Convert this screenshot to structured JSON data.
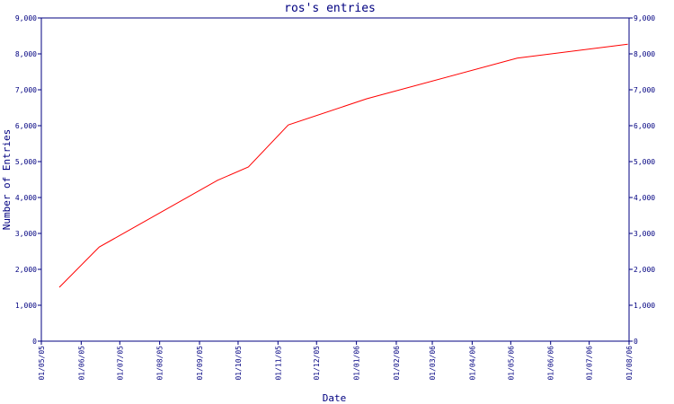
{
  "chart_data": {
    "type": "line",
    "title": "ros's entries",
    "xlabel": "Date",
    "ylabel": "Number of Entries",
    "grid": false,
    "x_ticks": [
      "01/05/05",
      "01/06/05",
      "01/07/05",
      "01/08/05",
      "01/09/05",
      "01/10/05",
      "01/11/05",
      "01/12/05",
      "01/01/06",
      "01/02/06",
      "01/03/06",
      "01/04/06",
      "01/05/06",
      "01/06/06",
      "01/07/06",
      "01/08/06"
    ],
    "xlim": [
      "01/05/05",
      "01/08/06"
    ],
    "ylim": [
      0,
      9000
    ],
    "y_ticks": [
      0,
      1000,
      2000,
      3000,
      4000,
      5000,
      6000,
      7000,
      8000,
      9000
    ],
    "y_tick_labels": [
      "0",
      "1,000",
      "2,000",
      "3,000",
      "4,000",
      "5,000",
      "6,000",
      "7,000",
      "8,000",
      "9,000"
    ],
    "colors": {
      "axis": "#000080",
      "line": "#ff0000"
    },
    "series": [
      {
        "color": "#ff0000",
        "points": [
          {
            "x": "2005-05-15",
            "y": 1500
          },
          {
            "x": "2005-06-15",
            "y": 2620
          },
          {
            "x": "2005-09-15",
            "y": 4480
          },
          {
            "x": "2005-10-09",
            "y": 4850
          },
          {
            "x": "2005-11-09",
            "y": 6020
          },
          {
            "x": "2006-01-09",
            "y": 6750
          },
          {
            "x": "2006-05-06",
            "y": 7880
          },
          {
            "x": "2006-07-31",
            "y": 8270
          }
        ]
      }
    ]
  }
}
